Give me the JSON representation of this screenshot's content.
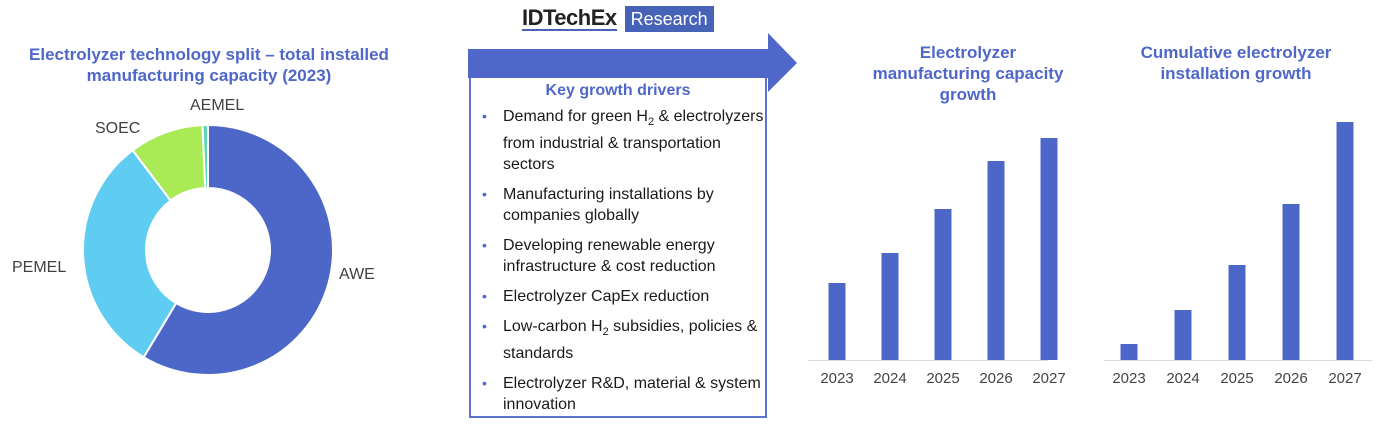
{
  "logo": {
    "name": "IDTechEx",
    "tag": "Research"
  },
  "colors": {
    "accent": "#4f67c9",
    "bar": "#4d67c8",
    "awe": "#4d67c8",
    "pemel": "#5fcdf2",
    "soec": "#a9ea55",
    "aemel": "#5ed6b4"
  },
  "drivers": {
    "title": "Key growth drivers",
    "items": [
      {
        "before": "Demand for green H",
        "sub": "2",
        "after": " & electrolyzers from industrial & transportation sectors"
      },
      {
        "before": "Manufacturing installations by companies globally",
        "sub": "",
        "after": ""
      },
      {
        "before": "Developing renewable energy infrastructure & cost reduction",
        "sub": "",
        "after": ""
      },
      {
        "before": "Electrolyzer CapEx reduction",
        "sub": "",
        "after": ""
      },
      {
        "before": "Low-carbon H",
        "sub": "2",
        "after": " subsidies, policies & standards"
      },
      {
        "before": "Electrolyzer R&D, material & system innovation",
        "sub": "",
        "after": ""
      }
    ]
  },
  "chart_data": [
    {
      "type": "pie",
      "title": "Electrolyzer technology split – total installed manufacturing capacity (2023)",
      "donut": true,
      "categories": [
        "AWE",
        "PEMEL",
        "SOEC",
        "AEMEL"
      ],
      "values": [
        58.6,
        31.1,
        9.6,
        0.7
      ],
      "colors": [
        "#4d67c8",
        "#5fcdf2",
        "#a9ea55",
        "#5ed6b4"
      ]
    },
    {
      "type": "bar",
      "title": "Electrolyzer manufacturing capacity growth",
      "categories": [
        "2023",
        "2024",
        "2025",
        "2026",
        "2027"
      ],
      "values": [
        77,
        107,
        151,
        199,
        222
      ],
      "ylim": [
        0,
        240
      ],
      "grid": false
    },
    {
      "type": "bar",
      "title": "Cumulative electrolyzer installation growth",
      "categories": [
        "2023",
        "2024",
        "2025",
        "2026",
        "2027"
      ],
      "values": [
        16,
        50,
        95,
        156,
        238
      ],
      "ylim": [
        0,
        240
      ],
      "grid": false
    }
  ]
}
